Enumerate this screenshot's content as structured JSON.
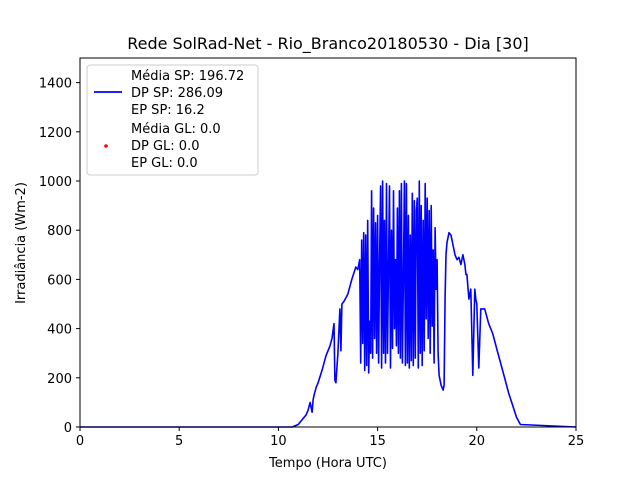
{
  "chart_data": {
    "type": "line",
    "title": "Rede SolRad-Net - Rio_Branco20180530 - Dia [30]",
    "xlabel": "Tempo (Hora UTC)",
    "ylabel": "Irradiância (Wm-2)",
    "xlim": [
      0,
      25
    ],
    "ylim": [
      0,
      1500
    ],
    "xticks": [
      0,
      5,
      10,
      15,
      20,
      25
    ],
    "yticks": [
      0,
      200,
      400,
      600,
      800,
      1000,
      1200,
      1400
    ],
    "grid": false,
    "legend_position": "top-left",
    "series": [
      {
        "name": "SP",
        "style": "line",
        "color": "#0000ff",
        "legend_lines": [
          "Média SP: 196.72",
          "DP SP: 286.09",
          "EP SP: 16.2"
        ],
        "x": [
          0,
          10.7,
          11.0,
          11.2,
          11.4,
          11.5,
          11.6,
          11.7,
          11.75,
          11.8,
          11.9,
          12.0,
          12.2,
          12.4,
          12.6,
          12.7,
          12.8,
          12.85,
          12.9,
          13.0,
          13.1,
          13.15,
          13.2,
          13.3,
          13.5,
          13.7,
          13.9,
          14.0,
          14.1,
          14.15,
          14.2,
          14.25,
          14.3,
          14.35,
          14.4,
          14.45,
          14.5,
          14.55,
          14.6,
          14.65,
          14.7,
          14.75,
          14.8,
          14.85,
          14.9,
          14.95,
          15.0,
          15.05,
          15.1,
          15.15,
          15.2,
          15.25,
          15.3,
          15.35,
          15.4,
          15.45,
          15.5,
          15.55,
          15.6,
          15.65,
          15.7,
          15.75,
          15.8,
          15.85,
          15.9,
          15.95,
          16.0,
          16.05,
          16.1,
          16.15,
          16.2,
          16.25,
          16.3,
          16.35,
          16.4,
          16.45,
          16.5,
          16.55,
          16.6,
          16.65,
          16.7,
          16.75,
          16.8,
          16.85,
          16.9,
          16.95,
          17.0,
          17.05,
          17.1,
          17.15,
          17.2,
          17.25,
          17.3,
          17.35,
          17.4,
          17.45,
          17.5,
          17.55,
          17.6,
          17.65,
          17.7,
          17.75,
          17.8,
          17.85,
          17.9,
          17.95,
          18.0,
          18.05,
          18.1,
          18.2,
          18.3,
          18.35,
          18.4,
          18.45,
          18.5,
          18.6,
          18.7,
          18.8,
          18.9,
          19.0,
          19.1,
          19.2,
          19.3,
          19.4,
          19.45,
          19.5,
          19.6,
          19.7,
          19.8,
          19.9,
          19.95,
          20.0,
          20.1,
          20.2,
          20.4,
          20.6,
          20.8,
          21.0,
          21.2,
          21.4,
          21.6,
          21.8,
          22.0,
          22.2,
          25
        ],
        "y": [
          0,
          0,
          10,
          30,
          50,
          70,
          100,
          60,
          110,
          130,
          160,
          180,
          230,
          290,
          330,
          360,
          420,
          190,
          180,
          300,
          480,
          310,
          500,
          510,
          540,
          600,
          650,
          640,
          680,
          260,
          760,
          340,
          790,
          230,
          780,
          250,
          840,
          220,
          430,
          300,
          960,
          280,
          890,
          360,
          830,
          300,
          860,
          260,
          680,
          980,
          240,
          1000,
          300,
          840,
          260,
          990,
          300,
          650,
          980,
          240,
          800,
          320,
          960,
          400,
          680,
          330,
          890,
          300,
          960,
          280,
          990,
          260,
          600,
          1000,
          250,
          990,
          260,
          860,
          240,
          780,
          270,
          950,
          250,
          920,
          280,
          880,
          930,
          240,
          1000,
          300,
          900,
          250,
          840,
          310,
          990,
          440,
          930,
          360,
          880,
          300,
          900,
          410,
          720,
          260,
          810,
          560,
          680,
          300,
          210,
          170,
          150,
          170,
          530,
          700,
          750,
          790,
          780,
          740,
          700,
          680,
          690,
          660,
          700,
          660,
          620,
          620,
          520,
          560,
          210,
          560,
          520,
          500,
          240,
          480,
          480,
          420,
          380,
          320,
          260,
          200,
          140,
          90,
          40,
          10,
          0
        ]
      },
      {
        "name": "GL",
        "style": "scatter",
        "color": "#ff0000",
        "legend_lines": [
          "Média GL: 0.0",
          "DP GL: 0.0",
          "EP GL: 0.0"
        ],
        "x": [],
        "y": []
      }
    ]
  }
}
